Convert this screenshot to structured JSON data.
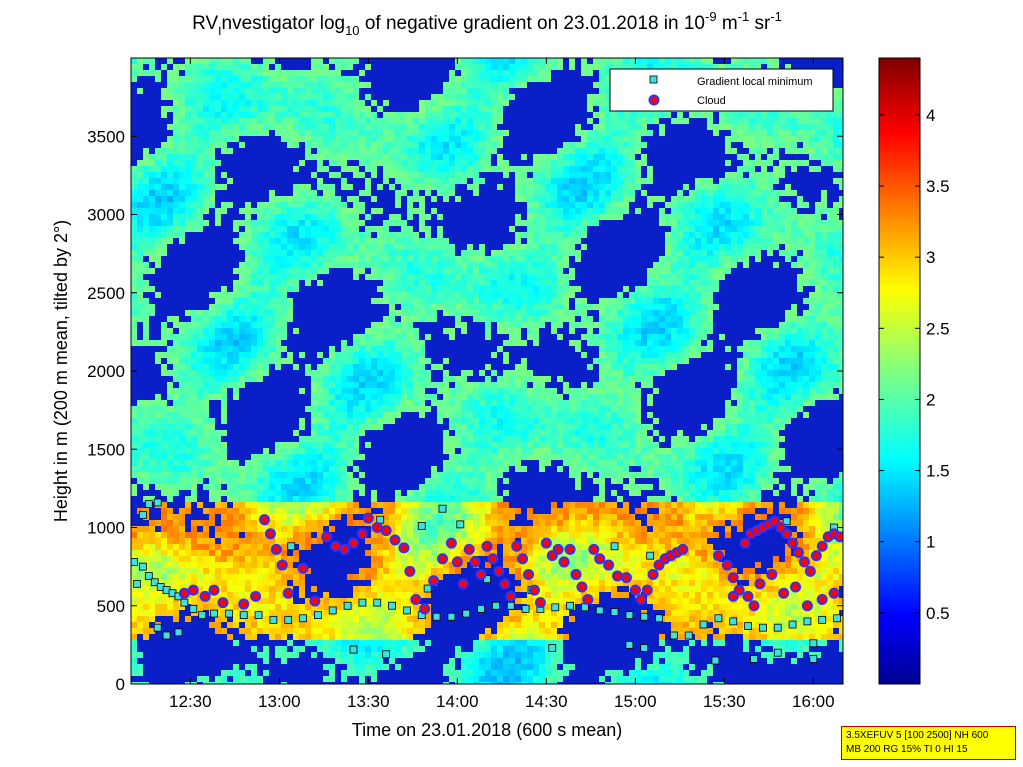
{
  "chart_data": {
    "type": "heatmap",
    "title_parts": {
      "prefix": "RV",
      "prefix_sub": "I",
      "mid": "nvestigator log",
      "log_sub": "10",
      "after": " of negative gradient on 23.01.2018 in 10",
      "unit_exp1": "-9",
      "unit_mid": " m",
      "unit_exp2": "-1",
      "unit_end": " sr",
      "unit_exp3": "-1"
    },
    "xlabel": "Time on 23.01.2018 (600 s mean)",
    "ylabel": "Height in m (200 m mean, tilted by 2°)",
    "x_range": [
      "12:10",
      "16:10"
    ],
    "x_ticks": [
      "12:30",
      "13:00",
      "13:30",
      "14:00",
      "14:30",
      "15:00",
      "15:30",
      "16:00"
    ],
    "ylim": [
      0,
      4000
    ],
    "y_ticks": [
      0,
      500,
      1000,
      1500,
      2000,
      2500,
      3000,
      3500
    ],
    "colorbar": {
      "range": [
        0,
        4.4
      ],
      "ticks": [
        0.5,
        1,
        1.5,
        2,
        2.5,
        3,
        3.5,
        4
      ],
      "colormap": "jet"
    },
    "legend": {
      "placement": "top-right",
      "entries": [
        {
          "label": "Gradient local minimum",
          "marker": "square",
          "color": "#40e0e0"
        },
        {
          "label": "Cloud",
          "marker": "circle",
          "color": "#ff0000",
          "edge": "#0000ff"
        }
      ]
    },
    "series": [
      {
        "name": "Gradient local minimum",
        "points": [
          [
            "12:11",
            780
          ],
          [
            "12:14",
            750
          ],
          [
            "12:16",
            690
          ],
          [
            "12:18",
            650
          ],
          [
            "12:20",
            620
          ],
          [
            "12:22",
            600
          ],
          [
            "12:24",
            580
          ],
          [
            "12:26",
            560
          ],
          [
            "12:28",
            520
          ],
          [
            "12:31",
            480
          ],
          [
            "12:34",
            440
          ],
          [
            "12:38",
            450
          ],
          [
            "12:43",
            450
          ],
          [
            "12:48",
            440
          ],
          [
            "12:53",
            440
          ],
          [
            "12:58",
            410
          ],
          [
            "13:03",
            410
          ],
          [
            "13:08",
            420
          ],
          [
            "13:13",
            440
          ],
          [
            "13:18",
            470
          ],
          [
            "13:23",
            500
          ],
          [
            "13:28",
            520
          ],
          [
            "13:33",
            520
          ],
          [
            "13:38",
            500
          ],
          [
            "13:43",
            470
          ],
          [
            "13:48",
            440
          ],
          [
            "13:53",
            430
          ],
          [
            "13:58",
            430
          ],
          [
            "14:03",
            450
          ],
          [
            "14:08",
            480
          ],
          [
            "14:13",
            500
          ],
          [
            "14:18",
            500
          ],
          [
            "14:23",
            480
          ],
          [
            "14:28",
            480
          ],
          [
            "14:33",
            490
          ],
          [
            "14:38",
            500
          ],
          [
            "14:43",
            490
          ],
          [
            "14:48",
            470
          ],
          [
            "14:53",
            460
          ],
          [
            "14:58",
            440
          ],
          [
            "15:03",
            430
          ],
          [
            "15:08",
            420
          ],
          [
            "15:13",
            310
          ],
          [
            "15:18",
            310
          ],
          [
            "15:23",
            380
          ],
          [
            "15:28",
            420
          ],
          [
            "15:33",
            400
          ],
          [
            "15:38",
            370
          ],
          [
            "15:43",
            360
          ],
          [
            "15:48",
            360
          ],
          [
            "15:53",
            380
          ],
          [
            "15:58",
            400
          ],
          [
            "16:03",
            410
          ],
          [
            "16:08",
            420
          ],
          [
            "12:14",
            1080
          ],
          [
            "12:16",
            1150
          ],
          [
            "12:19",
            1160
          ],
          [
            "13:34",
            1050
          ],
          [
            "13:48",
            1010
          ],
          [
            "13:55",
            1120
          ],
          [
            "14:01",
            1020
          ],
          [
            "15:03",
            230
          ],
          [
            "14:32",
            230
          ],
          [
            "12:22",
            310
          ],
          [
            "12:26",
            330
          ],
          [
            "13:25",
            220
          ],
          [
            "13:36",
            190
          ],
          [
            "14:58",
            250
          ],
          [
            "15:40",
            160
          ],
          [
            "16:00",
            160
          ],
          [
            "15:48",
            200
          ],
          [
            "13:04",
            880
          ],
          [
            "14:53",
            880
          ],
          [
            "15:05",
            820
          ],
          [
            "15:51",
            1040
          ],
          [
            "16:07",
            1000
          ],
          [
            "12:19",
            360
          ],
          [
            "12:12",
            640
          ],
          [
            "15:27",
            150
          ],
          [
            "14:10",
            670
          ],
          [
            "14:25",
            600
          ],
          [
            "13:50",
            610
          ],
          [
            "16:00",
            260
          ]
        ]
      },
      {
        "name": "Cloud",
        "points": [
          [
            "12:28",
            580
          ],
          [
            "12:31",
            600
          ],
          [
            "12:35",
            560
          ],
          [
            "12:38",
            600
          ],
          [
            "12:41",
            520
          ],
          [
            "12:48",
            510
          ],
          [
            "12:52",
            560
          ],
          [
            "12:55",
            1050
          ],
          [
            "12:57",
            960
          ],
          [
            "12:59",
            860
          ],
          [
            "13:01",
            760
          ],
          [
            "13:03",
            580
          ],
          [
            "13:08",
            740
          ],
          [
            "13:12",
            530
          ],
          [
            "13:16",
            940
          ],
          [
            "13:19",
            880
          ],
          [
            "13:22",
            860
          ],
          [
            "13:25",
            900
          ],
          [
            "13:28",
            960
          ],
          [
            "13:30",
            1060
          ],
          [
            "13:33",
            1000
          ],
          [
            "13:36",
            980
          ],
          [
            "13:39",
            920
          ],
          [
            "13:42",
            870
          ],
          [
            "13:44",
            720
          ],
          [
            "13:46",
            540
          ],
          [
            "13:49",
            480
          ],
          [
            "13:52",
            660
          ],
          [
            "13:55",
            800
          ],
          [
            "13:58",
            900
          ],
          [
            "14:00",
            780
          ],
          [
            "14:02",
            640
          ],
          [
            "14:04",
            860
          ],
          [
            "14:06",
            780
          ],
          [
            "14:08",
            700
          ],
          [
            "14:10",
            880
          ],
          [
            "14:12",
            800
          ],
          [
            "14:14",
            720
          ],
          [
            "14:16",
            640
          ],
          [
            "14:18",
            560
          ],
          [
            "14:20",
            880
          ],
          [
            "14:22",
            800
          ],
          [
            "14:24",
            700
          ],
          [
            "14:26",
            600
          ],
          [
            "14:28",
            520
          ],
          [
            "14:30",
            900
          ],
          [
            "14:32",
            820
          ],
          [
            "14:34",
            860
          ],
          [
            "14:36",
            780
          ],
          [
            "14:38",
            860
          ],
          [
            "14:40",
            700
          ],
          [
            "14:42",
            620
          ],
          [
            "14:44",
            540
          ],
          [
            "14:46",
            860
          ],
          [
            "14:48",
            800
          ],
          [
            "14:51",
            760
          ],
          [
            "14:54",
            690
          ],
          [
            "14:57",
            680
          ],
          [
            "15:00",
            600
          ],
          [
            "15:02",
            540
          ],
          [
            "15:04",
            600
          ],
          [
            "15:06",
            700
          ],
          [
            "15:08",
            760
          ],
          [
            "15:10",
            800
          ],
          [
            "15:12",
            820
          ],
          [
            "15:14",
            840
          ],
          [
            "15:16",
            860
          ],
          [
            "15:28",
            820
          ],
          [
            "15:31",
            760
          ],
          [
            "15:33",
            680
          ],
          [
            "15:35",
            600
          ],
          [
            "15:37",
            900
          ],
          [
            "15:39",
            960
          ],
          [
            "15:41",
            980
          ],
          [
            "15:43",
            1000
          ],
          [
            "15:45",
            1020
          ],
          [
            "15:47",
            1040
          ],
          [
            "15:49",
            1000
          ],
          [
            "15:51",
            960
          ],
          [
            "15:53",
            900
          ],
          [
            "15:55",
            840
          ],
          [
            "15:57",
            780
          ],
          [
            "15:59",
            720
          ],
          [
            "16:01",
            820
          ],
          [
            "16:03",
            880
          ],
          [
            "16:05",
            940
          ],
          [
            "16:07",
            960
          ],
          [
            "16:09",
            940
          ],
          [
            "15:38",
            560
          ],
          [
            "15:42",
            640
          ],
          [
            "15:46",
            700
          ],
          [
            "15:50",
            580
          ],
          [
            "15:54",
            620
          ],
          [
            "15:58",
            500
          ],
          [
            "16:03",
            540
          ],
          [
            "16:07",
            580
          ],
          [
            "15:33",
            560
          ],
          [
            "15:40",
            500
          ]
        ]
      }
    ]
  },
  "info_box": {
    "line1": "3.5XEFUV 5 [100 2500] NH 600",
    "line2": "MB 200 RG 15% TI 0 HI 15"
  }
}
